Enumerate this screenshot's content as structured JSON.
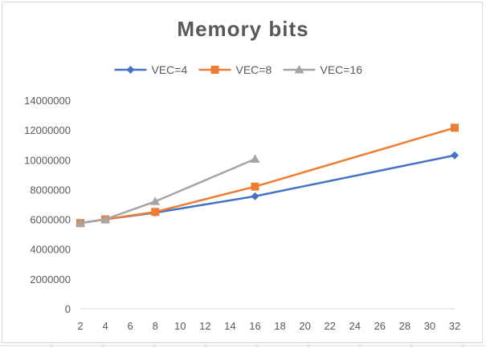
{
  "chart_data": {
    "type": "line",
    "title": "Memory bits",
    "xlabel": "",
    "ylabel": "",
    "x_axis_scale": "linear",
    "xlim": [
      2,
      32
    ],
    "ylim": [
      0,
      14000000
    ],
    "x_ticks": [
      "2",
      "4",
      "6",
      "8",
      "10",
      "12",
      "14",
      "16",
      "18",
      "20",
      "22",
      "24",
      "26",
      "28",
      "30",
      "32"
    ],
    "y_ticks": [
      "0",
      "2000000",
      "4000000",
      "6000000",
      "8000000",
      "10000000",
      "12000000",
      "14000000"
    ],
    "grid": false,
    "legend_position": "top",
    "series": [
      {
        "name": "VEC=4",
        "color": "#4472c4",
        "marker": "diamond",
        "x": [
          2,
          4,
          8,
          16,
          32
        ],
        "y": [
          5750000,
          6000000,
          6450000,
          7550000,
          10300000
        ]
      },
      {
        "name": "VEC=8",
        "color": "#ed7d31",
        "marker": "square",
        "x": [
          2,
          4,
          8,
          16,
          32
        ],
        "y": [
          5750000,
          6000000,
          6500000,
          8200000,
          12150000
        ]
      },
      {
        "name": "VEC=16",
        "color": "#a5a5a5",
        "marker": "triangle",
        "x": [
          2,
          4,
          8,
          16
        ],
        "y": [
          5750000,
          6000000,
          7200000,
          10050000
        ]
      }
    ]
  }
}
